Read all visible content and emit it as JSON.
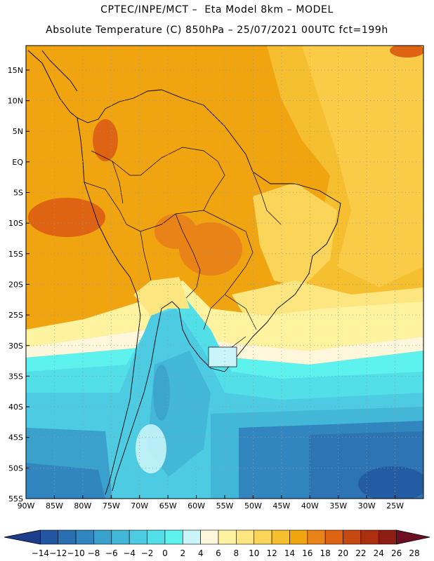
{
  "header": {
    "line1": "CPTEC/INPE/MCT –  Eta Model 8km – MODEL",
    "line2": "Absolute Temperature (C) 850hPa – 25/07/2021 00UTC fct=199h"
  },
  "map": {
    "lat_labels": [
      "15N",
      "10N",
      "5N",
      "EQ",
      "5S",
      "10S",
      "15S",
      "20S",
      "25S",
      "30S",
      "35S",
      "40S",
      "45S",
      "50S",
      "55S"
    ],
    "lon_labels": [
      "90W",
      "85W",
      "80W",
      "75W",
      "70W",
      "65W",
      "60W",
      "55W",
      "50W",
      "45W",
      "40W",
      "35W",
      "30W",
      "25W"
    ],
    "lon_range": [
      -90,
      -20
    ],
    "lat_range": [
      -55,
      19
    ],
    "grid": "dotted"
  },
  "colorbar": {
    "ticks": [
      "-14",
      "-12",
      "-10",
      "-8",
      "-6",
      "-4",
      "-2",
      "0",
      "2",
      "4",
      "6",
      "8",
      "10",
      "12",
      "14",
      "16",
      "18",
      "20",
      "22",
      "24",
      "26",
      "28"
    ],
    "colors": [
      "#1e3c8c",
      "#2356a0",
      "#2a6fb0",
      "#3286bf",
      "#3aa0cc",
      "#43b7d8",
      "#4ccbe2",
      "#52dfe8",
      "#5ef2ee",
      "#c8f4fa",
      "#fff7dc",
      "#fff3a0",
      "#fde680",
      "#fbd55a",
      "#f5bf30",
      "#f0a410",
      "#e98318",
      "#de6414",
      "#c84812",
      "#ac3010",
      "#8e1e14",
      "#6e0e22"
    ]
  }
}
